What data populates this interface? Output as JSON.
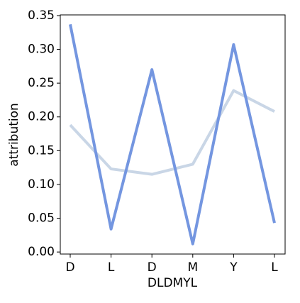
{
  "chart_data": {
    "type": "line",
    "xlabel": "DLDMYL",
    "ylabel": "attribution",
    "categories": [
      "D",
      "L",
      "D",
      "M",
      "Y",
      "L"
    ],
    "series": [
      {
        "color": "#c9d6e6",
        "values": [
          0.188,
          0.123,
          0.115,
          0.13,
          0.239,
          0.208
        ]
      },
      {
        "color": "#7496e0",
        "values": [
          0.337,
          0.034,
          0.27,
          0.012,
          0.307,
          0.043
        ]
      }
    ],
    "ylim": [
      -0.003,
      0.351
    ],
    "yticks": [
      {
        "value": 0,
        "label": "0.00"
      },
      {
        "value": 0.05,
        "label": "0.05"
      },
      {
        "value": 0.1,
        "label": "0.10"
      },
      {
        "value": 0.15,
        "label": "0.15"
      },
      {
        "value": 0.2,
        "label": "0.20"
      },
      {
        "value": 0.25,
        "label": "0.25"
      },
      {
        "value": 0.3,
        "label": "0.30"
      },
      {
        "value": 0.35,
        "label": "0.35"
      }
    ]
  }
}
